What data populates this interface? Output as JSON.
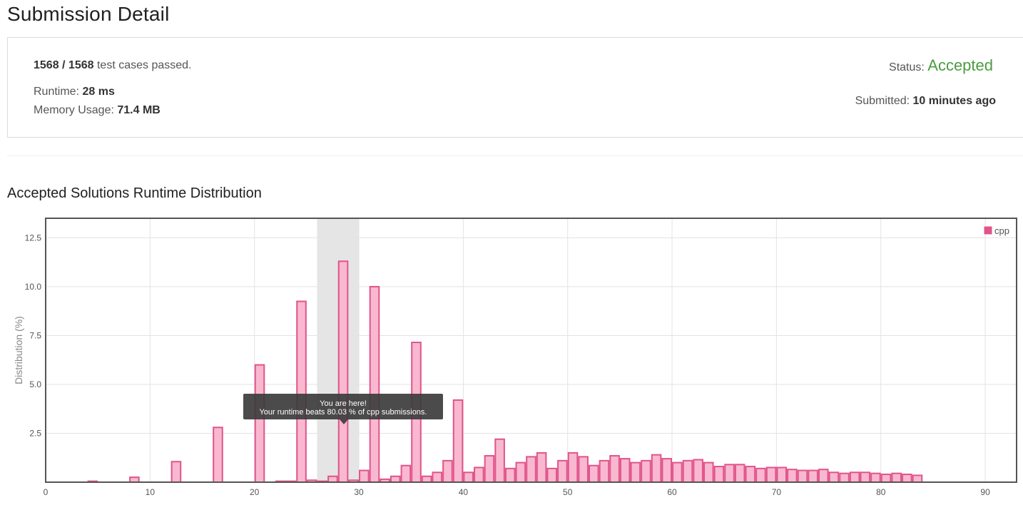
{
  "page": {
    "title": "Submission Detail",
    "section_title": "Accepted Solutions Runtime Distribution"
  },
  "summary": {
    "passed": "1568 / 1568",
    "passed_suffix": " test cases passed.",
    "runtime_label": "Runtime: ",
    "runtime_value": "28 ms",
    "memory_label": "Memory Usage: ",
    "memory_value": "71.4 MB",
    "status_label": "Status: ",
    "status_value": "Accepted",
    "submitted_label": "Submitted: ",
    "submitted_value": "10 minutes ago"
  },
  "colors": {
    "accepted": "#4a9d40",
    "bar_fill": "#f9b8cf",
    "bar_stroke": "#e0548a",
    "highlight_band": "#dcdcdc"
  },
  "tooltip": {
    "line1": "You are here!",
    "line2": "Your runtime beats 80.03 % of cpp submissions."
  },
  "chart_data": {
    "type": "bar",
    "ylabel": "Distribution (%)",
    "xlabel": "",
    "xlim": [
      0,
      93
    ],
    "ylim": [
      0,
      13.5
    ],
    "x_ticks": [
      "0",
      "10",
      "20",
      "30",
      "40",
      "50",
      "60",
      "70",
      "80",
      "90"
    ],
    "x_tick_values": [
      0,
      10,
      20,
      30,
      40,
      50,
      60,
      70,
      80,
      90
    ],
    "y_ticks": [
      "2.5",
      "5.0",
      "7.5",
      "10.0",
      "12.5"
    ],
    "y_tick_values": [
      2.5,
      5.0,
      7.5,
      10.0,
      12.5
    ],
    "grid": true,
    "legend": "top-right",
    "highlight": {
      "range": [
        26,
        30
      ],
      "marker_x": 28.5
    },
    "series": [
      {
        "name": "cpp",
        "x": [
          4.5,
          8.5,
          12.5,
          16.5,
          20.5,
          22.5,
          23.5,
          24.5,
          25.5,
          26.5,
          27.5,
          28.5,
          29.5,
          30.5,
          31.5,
          32.5,
          33.5,
          34.5,
          35.5,
          36.5,
          37.5,
          38.5,
          39.5,
          40.5,
          41.5,
          42.5,
          43.5,
          44.5,
          45.5,
          46.5,
          47.5,
          48.5,
          49.5,
          50.5,
          51.5,
          52.5,
          53.5,
          54.5,
          55.5,
          56.5,
          57.5,
          58.5,
          59.5,
          60.5,
          61.5,
          62.5,
          63.5,
          64.5,
          65.5,
          66.5,
          67.5,
          68.5,
          69.5,
          70.5,
          71.5,
          72.5,
          73.5,
          74.5,
          75.5,
          76.5,
          77.5,
          78.5,
          79.5,
          80.5,
          81.5,
          82.5,
          83.5
        ],
        "values": [
          0.05,
          0.25,
          1.05,
          2.8,
          6.0,
          0.05,
          0.05,
          9.25,
          0.1,
          0.05,
          0.3,
          11.3,
          0.1,
          0.6,
          10.0,
          0.15,
          0.3,
          0.85,
          7.15,
          0.3,
          0.5,
          1.1,
          4.2,
          0.5,
          0.75,
          1.35,
          2.2,
          0.7,
          1.0,
          1.3,
          1.5,
          0.7,
          1.1,
          1.5,
          1.3,
          0.85,
          1.1,
          1.35,
          1.2,
          1.0,
          1.1,
          1.4,
          1.2,
          1.0,
          1.1,
          1.15,
          1.0,
          0.8,
          0.9,
          0.9,
          0.8,
          0.7,
          0.75,
          0.75,
          0.65,
          0.6,
          0.6,
          0.65,
          0.5,
          0.45,
          0.5,
          0.5,
          0.45,
          0.4,
          0.45,
          0.4,
          0.35
        ]
      }
    ]
  }
}
